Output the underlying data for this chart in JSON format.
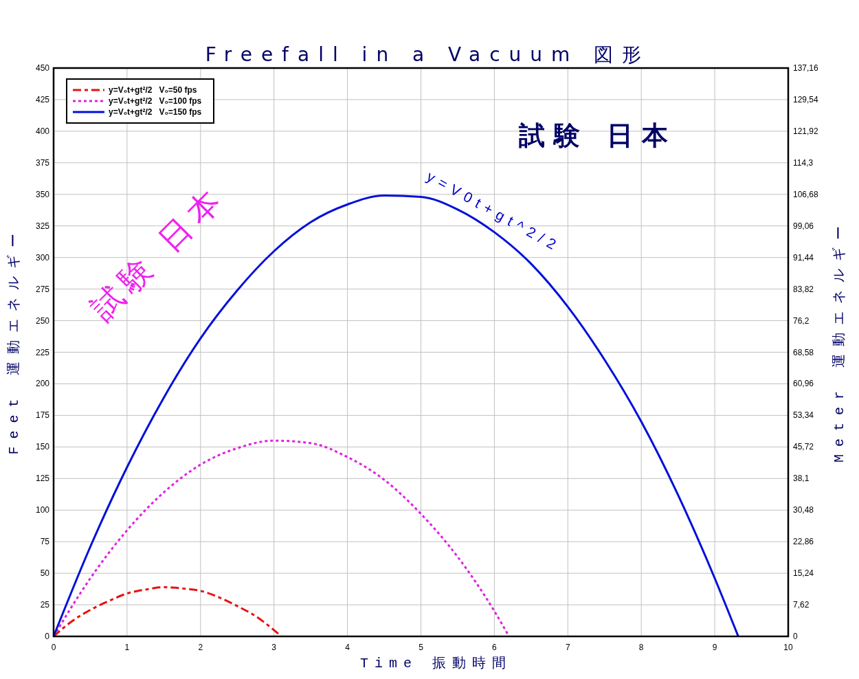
{
  "chart_data": {
    "type": "line",
    "title": "Freefall in a Vacuum 図形",
    "xlabel": "Time 振動時間",
    "ylabel": "Feet 運動エネルギー",
    "y2label": "Meter 運動エネルギー",
    "annotations": [
      "試験 日本",
      "試験 日本",
      "y=V0t+gt^2/2"
    ],
    "xlim": [
      0,
      10
    ],
    "xticks": [
      0,
      1,
      2,
      3,
      4,
      5,
      6,
      7,
      8,
      9,
      10
    ],
    "ylim": [
      0,
      450
    ],
    "yticks": [
      0,
      25,
      50,
      75,
      100,
      125,
      150,
      175,
      200,
      225,
      250,
      275,
      300,
      325,
      350,
      375,
      400,
      425,
      450
    ],
    "y2lim": [
      0,
      137.16
    ],
    "y2ticks": [
      0,
      {
        "value": 7.62,
        "label": "7,62"
      },
      {
        "value": 15.24,
        "label": "15,24"
      },
      {
        "value": 22.86,
        "label": "22,86"
      },
      {
        "value": 30.48,
        "label": "30,48"
      },
      {
        "value": 38.1,
        "label": "38,1"
      },
      {
        "value": 45.72,
        "label": "45,72"
      },
      {
        "value": 53.34,
        "label": "53,34"
      },
      {
        "value": 60.96,
        "label": "60,96"
      },
      {
        "value": 68.58,
        "label": "68,58"
      },
      {
        "value": 76.2,
        "label": "76,2"
      },
      {
        "value": 83.82,
        "label": "83,82"
      },
      {
        "value": 91.44,
        "label": "91,44"
      },
      {
        "value": 99.06,
        "label": "99,06"
      },
      {
        "value": 106.68,
        "label": "106,68"
      },
      {
        "value": 114.3,
        "label": "114,3"
      },
      {
        "value": 121.92,
        "label": "121,92"
      },
      {
        "value": 129.54,
        "label": "129,54"
      },
      {
        "value": 137.16,
        "label": "137,16"
      }
    ],
    "grid": true,
    "legend": "top left",
    "series": [
      {
        "name": "y=V₀t+gt²/2   V₀=50 fps",
        "color": "#e81010",
        "line_style": "dashed",
        "x": [
          0,
          0.25,
          0.5,
          0.75,
          1,
          1.25,
          1.5,
          1.75,
          2,
          2.25,
          2.5,
          2.75,
          3,
          3.1
        ],
        "values": [
          0,
          12,
          21,
          28,
          34,
          37,
          39,
          38,
          36,
          31,
          24,
          16,
          5,
          0
        ]
      },
      {
        "name": "y=V₀t+gt²/2   V₀=100 fps",
        "color": "#e020e0",
        "line_style": "dotted",
        "x": [
          0,
          0.5,
          1,
          1.5,
          2,
          2.5,
          3,
          3.5,
          4,
          4.5,
          5,
          5.5,
          6,
          6.2
        ],
        "values": [
          0,
          46,
          84,
          114,
          136,
          149,
          155,
          153,
          142,
          124,
          97,
          63,
          20,
          0
        ]
      },
      {
        "name": "y=V₀t+gt²/2   V₀=150 fps",
        "color": "#0010d8",
        "line_style": "solid",
        "x": [
          0,
          0.5,
          1,
          1.5,
          2,
          2.5,
          3,
          3.5,
          4,
          4.5,
          5,
          5.5,
          6,
          6.5,
          7,
          7.5,
          8,
          8.5,
          9,
          9.32
        ],
        "values": [
          0,
          71,
          134,
          189,
          236,
          274,
          305,
          328,
          342,
          349,
          348,
          338,
          320,
          295,
          261,
          219,
          170,
          112,
          46,
          0
        ]
      }
    ]
  }
}
